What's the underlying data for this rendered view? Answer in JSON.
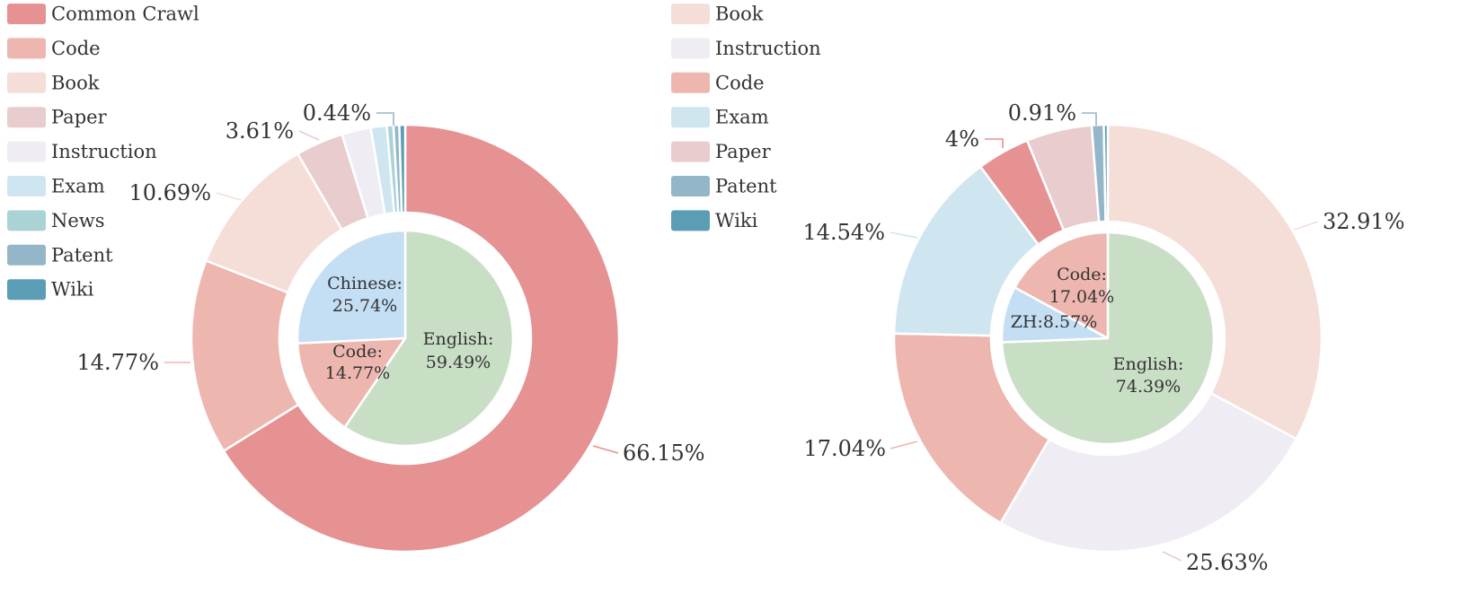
{
  "colors": {
    "Common Crawl": "#e69192",
    "Code": "#edb7b0",
    "Book": "#f5ddd8",
    "Paper": "#e8ccce",
    "Instruction": "#efedf3",
    "Exam": "#cfe6f0",
    "News": "#abd3d6",
    "Patent": "#94b6c9",
    "Wiki": "#5a9db5",
    "English": "#c8dfc5",
    "Chinese": "#c4def3",
    "ZH": "#c4def3"
  },
  "chart_data": [
    {
      "type": "pie",
      "legend": [
        "Common Crawl",
        "Code",
        "Book",
        "Paper",
        "Instruction",
        "Exam",
        "News",
        "Patent",
        "Wiki"
      ],
      "outer": [
        {
          "name": "Common Crawl",
          "value": 66.15,
          "label": "66.15%"
        },
        {
          "name": "Code",
          "value": 14.77,
          "label": "14.77%"
        },
        {
          "name": "Book",
          "value": 10.69,
          "label": "10.69%"
        },
        {
          "name": "Paper",
          "value": 3.61,
          "label": "3.61%"
        },
        {
          "name": "Instruction",
          "value": 2.2,
          "label": ""
        },
        {
          "name": "Exam",
          "value": 1.2,
          "label": ""
        },
        {
          "name": "News",
          "value": 0.5,
          "label": ""
        },
        {
          "name": "Patent",
          "value": 0.44,
          "label": "0.44%"
        },
        {
          "name": "Wiki",
          "value": 0.44,
          "label": ""
        }
      ],
      "inner": [
        {
          "name": "English",
          "value": 59.49,
          "label": [
            "English:",
            "59.49%"
          ]
        },
        {
          "name": "Code",
          "value": 14.77,
          "label": [
            "Code:",
            "14.77%"
          ]
        },
        {
          "name": "Chinese",
          "value": 25.74,
          "label": [
            "Chinese:",
            "25.74%"
          ]
        }
      ]
    },
    {
      "type": "pie",
      "legend": [
        "Book",
        "Instruction",
        "Code",
        "Exam",
        "Paper",
        "Patent",
        "Wiki"
      ],
      "outer": [
        {
          "name": "Book",
          "value": 32.91,
          "label": "32.91%"
        },
        {
          "name": "Instruction",
          "value": 25.63,
          "label": "25.63%"
        },
        {
          "name": "Code",
          "value": 17.04,
          "label": "17.04%"
        },
        {
          "name": "Exam",
          "value": 14.54,
          "label": "14.54%"
        },
        {
          "name": "Common Crawl",
          "value": 4,
          "label": "4%"
        },
        {
          "name": "Paper",
          "value": 4.97,
          "label": ""
        },
        {
          "name": "Patent",
          "value": 0.91,
          "label": "0.91%"
        },
        {
          "name": "Wiki",
          "value": 0.3,
          "label": ""
        }
      ],
      "inner": [
        {
          "name": "English",
          "value": 74.39,
          "label": [
            "English:",
            "74.39%"
          ]
        },
        {
          "name": "ZH",
          "value": 8.57,
          "label": [
            "ZH:8.57%"
          ]
        },
        {
          "name": "Code",
          "value": 17.04,
          "label": [
            "Code:",
            "17.04%"
          ]
        }
      ]
    }
  ]
}
